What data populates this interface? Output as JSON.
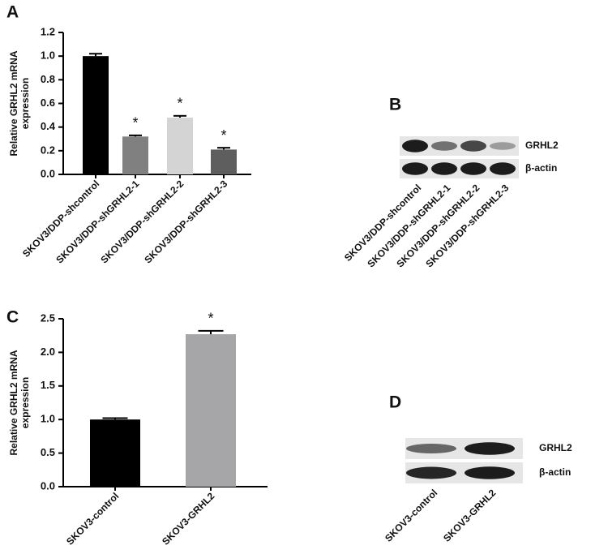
{
  "chart_data": [
    {
      "type": "bar",
      "panel": "A",
      "ylabel": [
        "Relative GRHL2 mRNA",
        "expression"
      ],
      "categories": [
        "SKOV3/DDP-shcontrol",
        "SKOV3/DDP-shGRHL2-1",
        "SKOV3/DDP-shGRHL2-2",
        "SKOV3/DDP-shGRHL2-3"
      ],
      "values": [
        1.0,
        0.32,
        0.48,
        0.21
      ],
      "errors": [
        0.02,
        0.01,
        0.015,
        0.015
      ],
      "markers": [
        null,
        "*",
        "*",
        "*"
      ],
      "colors": [
        "#000000",
        "#808080",
        "#d4d4d4",
        "#5e5e5e"
      ],
      "ylim": [
        0,
        1.2
      ],
      "yticks": [
        {
          "value": 0,
          "label": "0.0"
        },
        0.2,
        0.4,
        0.6,
        0.8,
        {
          "value": 1,
          "label": "1.0"
        },
        1.2
      ]
    },
    {
      "type": "bar",
      "panel": "C",
      "ylabel": [
        "Relative GRHL2 mRNA",
        "expression"
      ],
      "categories": [
        "SKOV3-control",
        "SKOV3-GRHL2"
      ],
      "values": [
        1.0,
        2.27
      ],
      "errors": [
        0.02,
        0.05
      ],
      "markers": [
        null,
        "*"
      ],
      "colors": [
        "#000000",
        "#a6a6a8"
      ],
      "ylim": [
        0,
        2.5
      ],
      "yticks": [
        {
          "value": 0,
          "label": "0.0"
        },
        0.5,
        {
          "value": 1,
          "label": "1.0"
        },
        1.5,
        {
          "value": 2,
          "label": "2.0"
        },
        2.5
      ]
    }
  ],
  "blots": [
    {
      "panel": "B",
      "rows": [
        "GRHL2",
        "β-actin"
      ],
      "lanes": [
        "SKOV3/DDP-shcontrol",
        "SKOV3/DDP-shGRHL2-1",
        "SKOV3/DDP-shGRHL2-2",
        "SKOV3/DDP-shGRHL2-3"
      ]
    },
    {
      "panel": "D",
      "rows": [
        "GRHL2",
        "β-actin"
      ],
      "lanes": [
        "SKOV3-control",
        "SKOV3-GRHL2"
      ]
    }
  ]
}
